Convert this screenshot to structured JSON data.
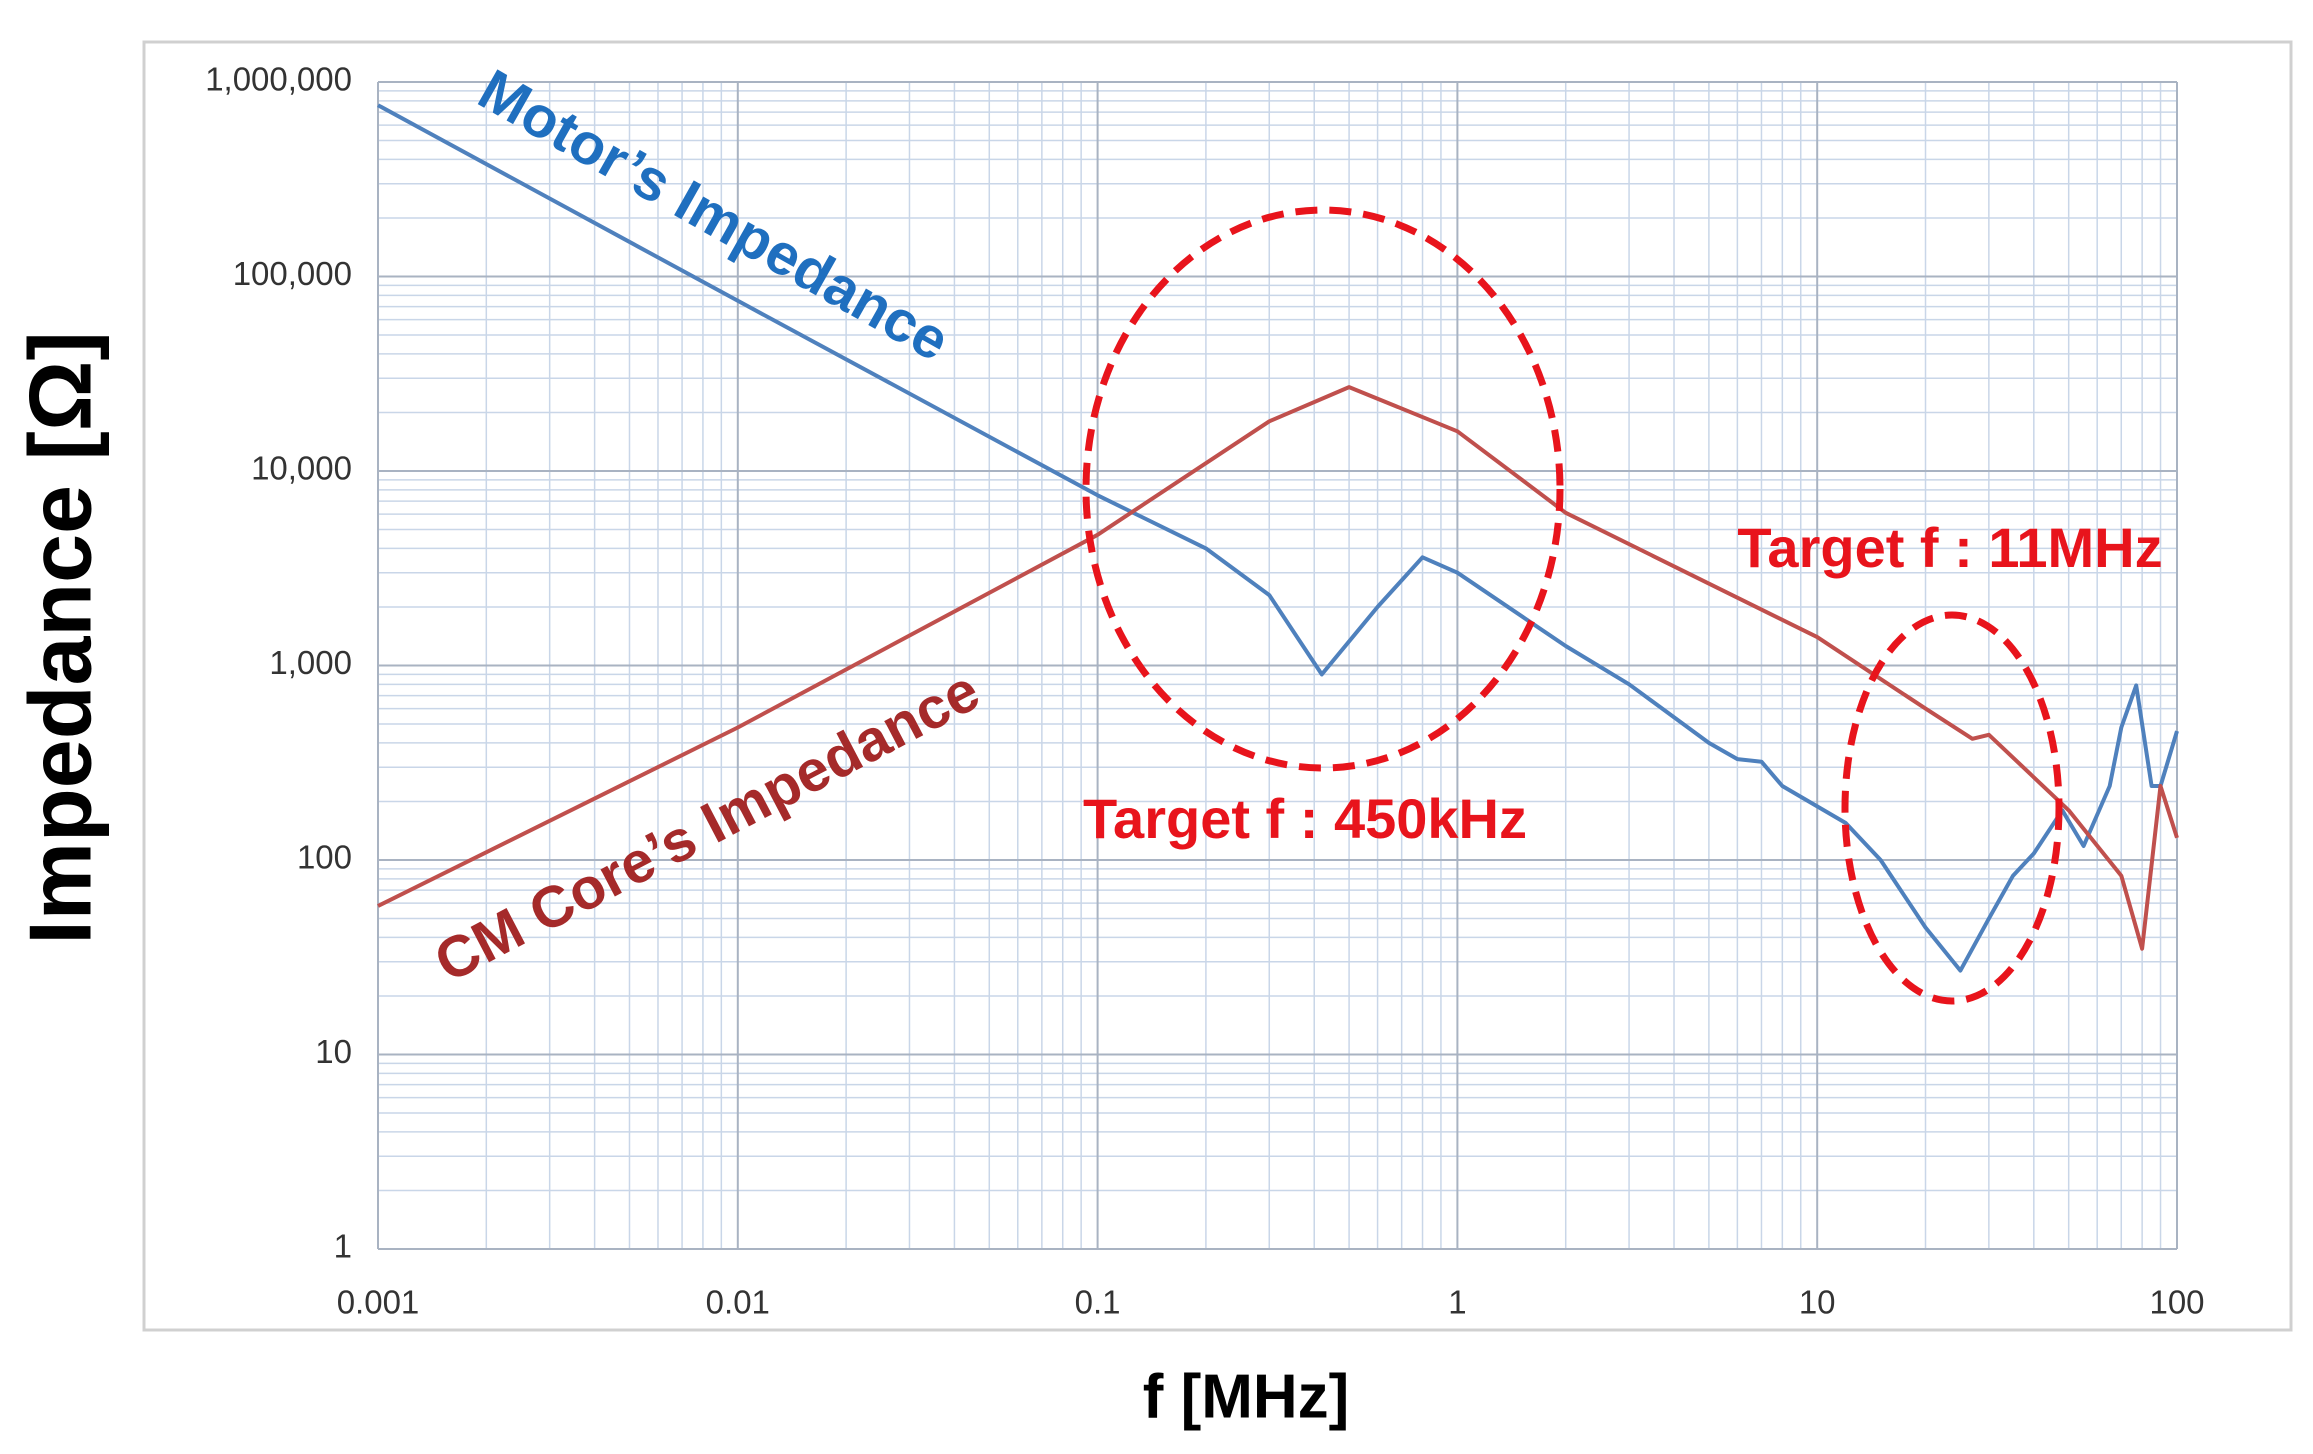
{
  "chart_data": {
    "type": "line",
    "x_label": "f [MHz]",
    "y_label": "Impedance [Ω]",
    "xscale": "log",
    "yscale": "log",
    "grid": true,
    "xlim": [
      0.001,
      100
    ],
    "ylim": [
      1,
      1000000
    ],
    "xticks": [
      0.001,
      0.01,
      0.1,
      1,
      10,
      100
    ],
    "yticks": [
      1,
      10,
      100,
      {
        "value": 1000,
        "label": "1,000"
      },
      {
        "value": 10000,
        "label": "10,000"
      },
      {
        "value": 100000,
        "label": "100,000"
      },
      {
        "value": 1000000,
        "label": "1,000,000"
      }
    ],
    "series": [
      {
        "name": "Motor’s Impedance",
        "color": "#4f81bd",
        "x": [
          0.001,
          0.01,
          0.1,
          0.2,
          0.3,
          0.42,
          0.6,
          0.8,
          1,
          2,
          3,
          5,
          6,
          7,
          8,
          12,
          15,
          20,
          25,
          30,
          35,
          40,
          48,
          55,
          65,
          70,
          77,
          85,
          90,
          100
        ],
        "values": [
          760000,
          75000,
          7500,
          4000,
          2300,
          900,
          2000,
          3600,
          3000,
          1260,
          800,
          400,
          330,
          320,
          240,
          155,
          100,
          45,
          27,
          50,
          83,
          108,
          180,
          118,
          240,
          480,
          790,
          240,
          240,
          460
        ]
      },
      {
        "name": "CM Core’s Impedance",
        "color": "#c0504d",
        "x": [
          0.001,
          0.01,
          0.1,
          0.3,
          0.5,
          1,
          2,
          10,
          20,
          27,
          30,
          50,
          70,
          80,
          90,
          100
        ],
        "values": [
          58,
          480,
          4700,
          18000,
          27000,
          16000,
          6100,
          1400,
          600,
          420,
          440,
          180,
          83,
          35,
          240,
          130
        ]
      }
    ],
    "annotations": [
      "Target f : 11MHz",
      "Target f : 450kHz"
    ]
  }
}
